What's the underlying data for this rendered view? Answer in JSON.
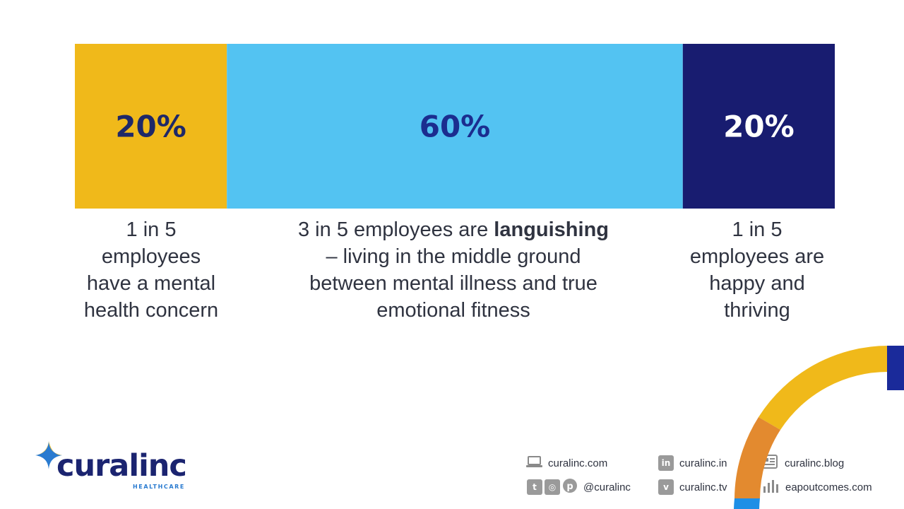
{
  "chart_data": {
    "type": "bar",
    "orientation": "horizontal-stacked-100",
    "categories": [
      "1 in 5 employees have a mental health concern",
      "3 in 5 employees are languishing",
      "1 in 5 employees are happy and thriving"
    ],
    "values": [
      20,
      60,
      20
    ],
    "data_labels": [
      "20%",
      "60%",
      "20%"
    ],
    "colors": [
      "#F0B91A",
      "#53C3F2",
      "#181C70"
    ],
    "label_colors": [
      "#1e2868",
      "#1b2d8f",
      "#ffffff"
    ]
  },
  "captions": {
    "c1": "1 in 5\nemployees\nhave a mental\nhealth concern",
    "c2_pre": "3 in 5 employees are ",
    "c2_bold": "languishing",
    "c2_post": "\n– living in the middle ground\nbetween mental illness and true\nemotional fitness",
    "c3": "1 in 5\nemployees are\nhappy and\nthriving"
  },
  "logo": {
    "word": "curalinc",
    "sub": "HEALTHCARE",
    "colors": {
      "navy": "#1b2470",
      "gold": "#F0B91A",
      "blue": "#2a7bd0"
    }
  },
  "footer": {
    "website": "curalinc.com",
    "linkedin": "curalinc.in",
    "blog": "curalinc.blog",
    "social_handle": "@curalinc",
    "vimeo": "curalinc.tv",
    "outcomes": "eapoutcomes.com"
  },
  "icons": {
    "website": "laptop-icon",
    "linkedin": "linkedin-icon",
    "blog": "blog-icon",
    "twitter": "twitter-icon",
    "instagram": "instagram-icon",
    "pinterest": "pinterest-icon",
    "vimeo": "vimeo-icon",
    "outcomes": "bar-chart-icon"
  }
}
